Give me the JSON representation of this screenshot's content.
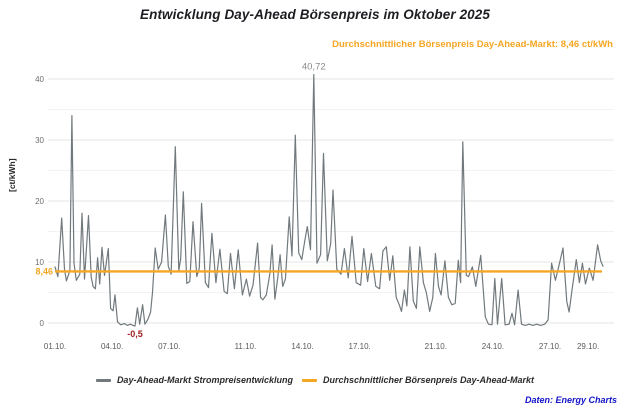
{
  "title": "Entwicklung Day-Ahead Börsenpreis im Oktober 2025",
  "annotation_avg": "Durchschnittlicher Börsenpreis Day-Ahead-Markt: 8,46 ct/kWh",
  "source": "Daten: Energy Charts",
  "legend": {
    "series1": "Day-Ahead-Markt Strompreisentwicklung",
    "series2": "Durchschnittlicher Börsenpreis Day-Ahead-Markt"
  },
  "colors": {
    "line": "#71797d",
    "average": "#F5A623",
    "max_label": "#8b8b8b",
    "min_label": "#9E1B1B",
    "grid_major": "#e4e4e4",
    "grid_minor": "#f2f2f2",
    "y_tick_text": "#6e6e6e",
    "x_tick_text": "#5a5a5a",
    "source": "#1414c8",
    "title": "#1d1d22"
  },
  "chart_data": {
    "type": "line",
    "title": "Entwicklung Day-Ahead Börsenpreis im Oktober 2025",
    "xlabel": "",
    "ylabel": "[ct/kWh]",
    "ylim": [
      -2,
      43
    ],
    "yticks": [
      0,
      10,
      20,
      30,
      40
    ],
    "grid_minor_step": 5,
    "legend_position": "bottom",
    "x_unit": "days since 01.10. 00:00",
    "x_ticks": [
      {
        "label": "01.10.",
        "day": 0
      },
      {
        "label": "04.10.",
        "day": 3
      },
      {
        "label": "07.10.",
        "day": 6
      },
      {
        "label": "11.10.",
        "day": 10
      },
      {
        "label": "14.10.",
        "day": 13
      },
      {
        "label": "17.10.",
        "day": 16
      },
      {
        "label": "21.10.",
        "day": 20
      },
      {
        "label": "24.10.",
        "day": 23
      },
      {
        "label": "27.10.",
        "day": 26
      },
      {
        "label": "29.10.",
        "day": 28
      }
    ],
    "average": {
      "value": 8.46,
      "label": "8,46"
    },
    "max_annotation": {
      "day": 13.59,
      "value": 40.72,
      "label": "40,72"
    },
    "min_annotation": {
      "day": 4.2,
      "value": -0.5,
      "label": "-0,5"
    },
    "series": [
      {
        "name": "Day-Ahead-Markt Strompreisentwicklung",
        "points": [
          [
            0.0,
            9.2
          ],
          [
            0.15,
            7.6
          ],
          [
            0.35,
            17.2
          ],
          [
            0.5,
            8.8
          ],
          [
            0.6,
            6.9
          ],
          [
            0.78,
            8.6
          ],
          [
            0.89,
            34.0
          ],
          [
            1.0,
            9.8
          ],
          [
            1.12,
            7.0
          ],
          [
            1.3,
            8.0
          ],
          [
            1.42,
            18.0
          ],
          [
            1.55,
            7.2
          ],
          [
            1.76,
            17.6
          ],
          [
            1.9,
            7.5
          ],
          [
            2.0,
            6.0
          ],
          [
            2.12,
            5.6
          ],
          [
            2.24,
            10.7
          ],
          [
            2.35,
            6.4
          ],
          [
            2.47,
            12.4
          ],
          [
            2.6,
            7.8
          ],
          [
            2.8,
            12.2
          ],
          [
            2.92,
            2.4
          ],
          [
            3.05,
            2.0
          ],
          [
            3.15,
            4.6
          ],
          [
            3.28,
            0.2
          ],
          [
            3.45,
            -0.3
          ],
          [
            3.65,
            -0.1
          ],
          [
            3.8,
            -0.4
          ],
          [
            3.95,
            -0.2
          ],
          [
            4.1,
            -0.4
          ],
          [
            4.2,
            -0.5
          ],
          [
            4.33,
            2.5
          ],
          [
            4.45,
            -0.2
          ],
          [
            4.6,
            3.0
          ],
          [
            4.72,
            -0.2
          ],
          [
            4.88,
            0.6
          ],
          [
            5.02,
            1.8
          ],
          [
            5.12,
            5.0
          ],
          [
            5.26,
            12.3
          ],
          [
            5.42,
            8.8
          ],
          [
            5.6,
            10.0
          ],
          [
            5.8,
            17.7
          ],
          [
            5.95,
            9.3
          ],
          [
            6.1,
            8.0
          ],
          [
            6.32,
            28.9
          ],
          [
            6.5,
            8.6
          ],
          [
            6.6,
            10.5
          ],
          [
            6.74,
            21.5
          ],
          [
            6.92,
            6.5
          ],
          [
            7.08,
            6.8
          ],
          [
            7.25,
            16.6
          ],
          [
            7.45,
            7.6
          ],
          [
            7.58,
            9.0
          ],
          [
            7.7,
            19.6
          ],
          [
            7.9,
            6.6
          ],
          [
            8.06,
            5.8
          ],
          [
            8.24,
            14.7
          ],
          [
            8.45,
            6.6
          ],
          [
            8.66,
            12.1
          ],
          [
            8.88,
            5.2
          ],
          [
            9.05,
            4.8
          ],
          [
            9.22,
            11.4
          ],
          [
            9.42,
            5.6
          ],
          [
            9.62,
            12.0
          ],
          [
            9.84,
            4.6
          ],
          [
            10.05,
            7.2
          ],
          [
            10.22,
            4.4
          ],
          [
            10.4,
            6.2
          ],
          [
            10.64,
            13.1
          ],
          [
            10.8,
            4.2
          ],
          [
            10.92,
            3.8
          ],
          [
            11.1,
            4.6
          ],
          [
            11.28,
            8.0
          ],
          [
            11.4,
            12.8
          ],
          [
            11.55,
            3.9
          ],
          [
            11.7,
            7.5
          ],
          [
            11.82,
            11.2
          ],
          [
            11.96,
            6.0
          ],
          [
            12.1,
            7.2
          ],
          [
            12.3,
            17.4
          ],
          [
            12.45,
            11.0
          ],
          [
            12.62,
            30.8
          ],
          [
            12.8,
            11.5
          ],
          [
            12.96,
            10.4
          ],
          [
            13.12,
            13.5
          ],
          [
            13.25,
            15.8
          ],
          [
            13.42,
            12.0
          ],
          [
            13.59,
            40.72
          ],
          [
            13.76,
            9.8
          ],
          [
            13.95,
            11.2
          ],
          [
            14.1,
            27.8
          ],
          [
            14.3,
            10.2
          ],
          [
            14.48,
            13.0
          ],
          [
            14.6,
            21.8
          ],
          [
            14.8,
            8.8
          ],
          [
            15.02,
            8.0
          ],
          [
            15.2,
            12.2
          ],
          [
            15.4,
            7.4
          ],
          [
            15.6,
            14.2
          ],
          [
            15.82,
            6.6
          ],
          [
            16.05,
            6.2
          ],
          [
            16.22,
            12.2
          ],
          [
            16.42,
            6.8
          ],
          [
            16.62,
            11.4
          ],
          [
            16.85,
            6.0
          ],
          [
            17.05,
            5.6
          ],
          [
            17.22,
            11.8
          ],
          [
            17.4,
            12.5
          ],
          [
            17.58,
            7.0
          ],
          [
            17.74,
            11.0
          ],
          [
            17.92,
            4.2
          ],
          [
            18.08,
            3.0
          ],
          [
            18.2,
            1.9
          ],
          [
            18.35,
            5.4
          ],
          [
            18.48,
            2.8
          ],
          [
            18.64,
            12.5
          ],
          [
            18.82,
            3.6
          ],
          [
            18.98,
            2.4
          ],
          [
            19.16,
            12.5
          ],
          [
            19.35,
            6.6
          ],
          [
            19.5,
            5.0
          ],
          [
            19.68,
            1.9
          ],
          [
            19.84,
            4.2
          ],
          [
            19.98,
            11.4
          ],
          [
            20.14,
            6.0
          ],
          [
            20.28,
            4.6
          ],
          [
            20.48,
            10.2
          ],
          [
            20.66,
            4.2
          ],
          [
            20.84,
            3.0
          ],
          [
            21.02,
            3.2
          ],
          [
            21.18,
            10.3
          ],
          [
            21.3,
            6.6
          ],
          [
            21.42,
            29.7
          ],
          [
            21.6,
            7.8
          ],
          [
            21.72,
            7.6
          ],
          [
            21.92,
            9.2
          ],
          [
            22.1,
            6.0
          ],
          [
            22.36,
            11.1
          ],
          [
            22.6,
            1.0
          ],
          [
            22.76,
            -0.2
          ],
          [
            22.95,
            -0.3
          ],
          [
            23.1,
            7.3
          ],
          [
            23.24,
            -0.2
          ],
          [
            23.46,
            7.3
          ],
          [
            23.64,
            -0.3
          ],
          [
            23.85,
            -0.2
          ],
          [
            24.0,
            1.6
          ],
          [
            24.14,
            -0.3
          ],
          [
            24.32,
            5.4
          ],
          [
            24.5,
            -0.2
          ],
          [
            24.7,
            -0.4
          ],
          [
            24.9,
            -0.2
          ],
          [
            25.1,
            -0.4
          ],
          [
            25.3,
            -0.2
          ],
          [
            25.5,
            -0.4
          ],
          [
            25.72,
            -0.2
          ],
          [
            25.9,
            0.5
          ],
          [
            26.08,
            9.8
          ],
          [
            26.28,
            7.0
          ],
          [
            26.46,
            9.3
          ],
          [
            26.68,
            12.3
          ],
          [
            26.88,
            3.5
          ],
          [
            27.0,
            1.8
          ],
          [
            27.16,
            5.5
          ],
          [
            27.38,
            10.4
          ],
          [
            27.54,
            6.6
          ],
          [
            27.7,
            9.8
          ],
          [
            27.86,
            6.4
          ],
          [
            28.06,
            9.0
          ],
          [
            28.26,
            7.0
          ],
          [
            28.5,
            12.8
          ],
          [
            28.66,
            10.2
          ],
          [
            28.78,
            9.3
          ]
        ]
      }
    ]
  }
}
